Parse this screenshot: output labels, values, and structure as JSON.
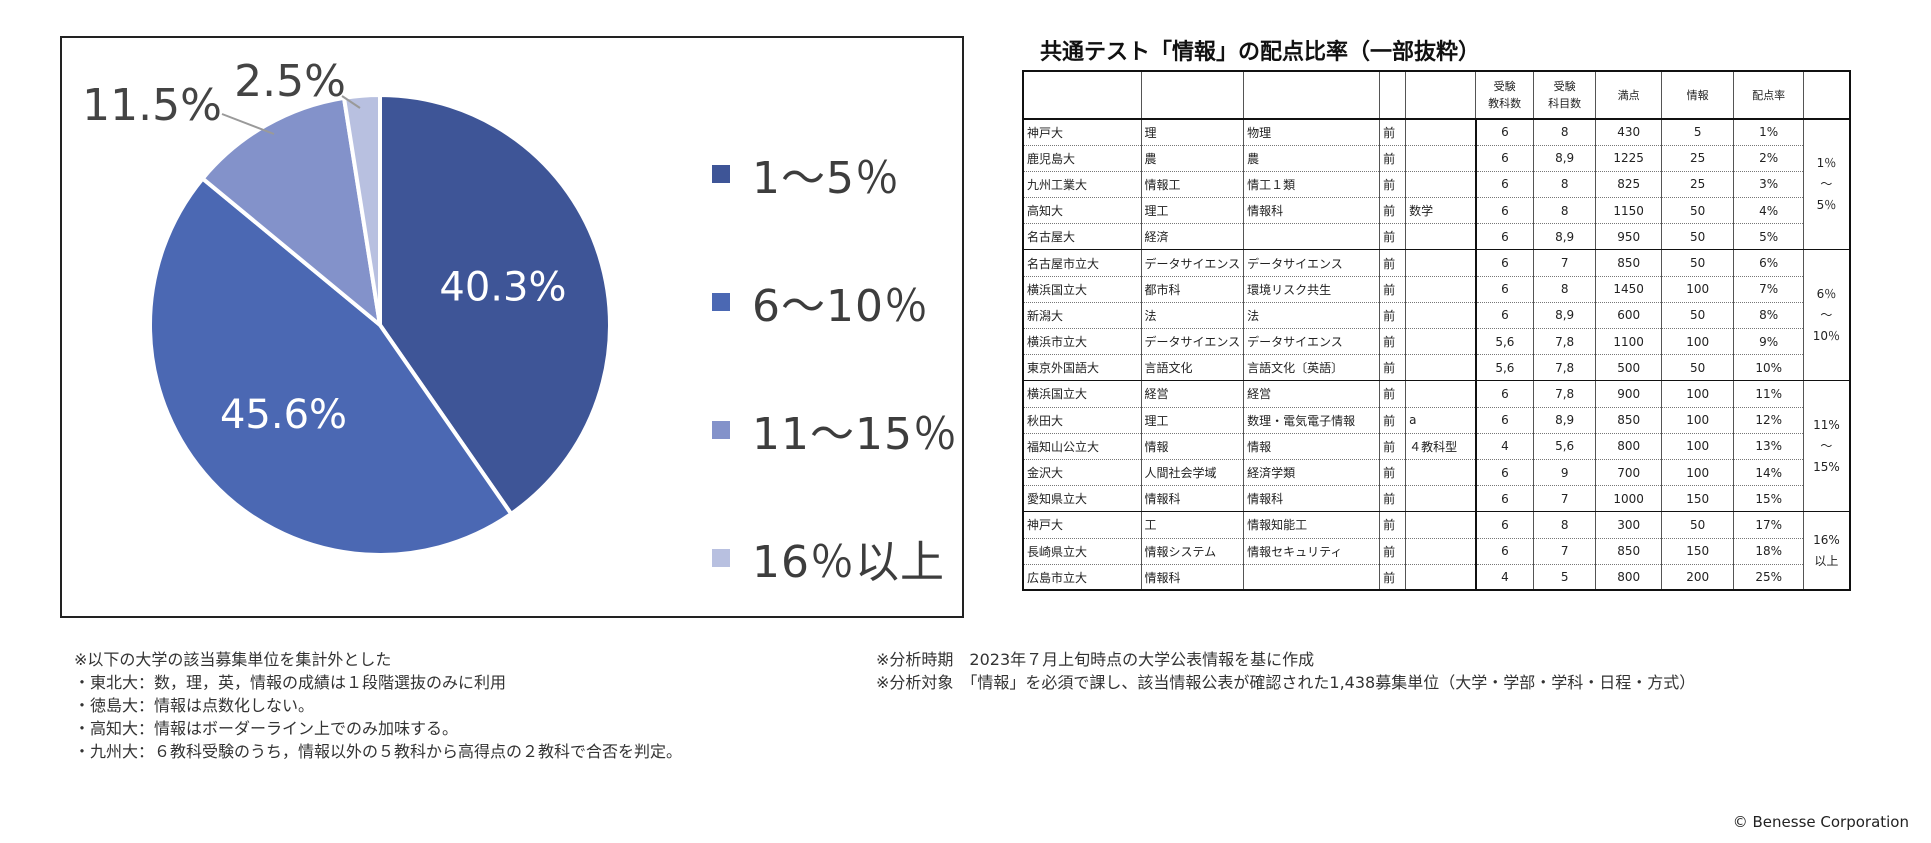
{
  "chart_data": {
    "type": "pie",
    "slices": [
      {
        "label": "1～5％",
        "value": 40.3,
        "value_label": "40.3%",
        "color": "#3e5597"
      },
      {
        "label": "6～10％",
        "value": 45.6,
        "value_label": "45.6%",
        "color": "#4b68b3"
      },
      {
        "label": "11～15％",
        "value": 11.5,
        "value_label": "11.5%",
        "color": "#8392ca"
      },
      {
        "label": "16％以上",
        "value": 2.5,
        "value_label": "2.5%",
        "color": "#b8c0e0"
      }
    ],
    "legend": "right"
  },
  "table": {
    "title": "共通テスト「情報」の配点比率（一部抜粋）",
    "headers": [
      "",
      "",
      "",
      "",
      "",
      "受験\n教科数",
      "受験\n科目数",
      "満点",
      "情報",
      "配点率"
    ],
    "groups": [
      {
        "range_label": "1％\n～\n5％",
        "rows": [
          [
            "神戸大",
            "理",
            "物理",
            "前",
            "",
            "6",
            "8",
            "430",
            "5",
            "1%"
          ],
          [
            "鹿児島大",
            "農",
            "農",
            "前",
            "",
            "6",
            "8,9",
            "1225",
            "25",
            "2%"
          ],
          [
            "九州工業大",
            "情報工",
            "情工１類",
            "前",
            "",
            "6",
            "8",
            "825",
            "25",
            "3%"
          ],
          [
            "高知大",
            "理工",
            "情報科",
            "前",
            "数学",
            "6",
            "8",
            "1150",
            "50",
            "4%"
          ],
          [
            "名古屋大",
            "経済",
            "",
            "前",
            "",
            "6",
            "8,9",
            "950",
            "50",
            "5%"
          ]
        ]
      },
      {
        "range_label": "6％\n～\n10％",
        "rows": [
          [
            "名古屋市立大",
            "データサイエンス",
            "データサイエンス",
            "前",
            "",
            "6",
            "7",
            "850",
            "50",
            "6%"
          ],
          [
            "横浜国立大",
            "都市科",
            "環境リスク共生",
            "前",
            "",
            "6",
            "8",
            "1450",
            "100",
            "7%"
          ],
          [
            "新潟大",
            "法",
            "法",
            "前",
            "",
            "6",
            "8,9",
            "600",
            "50",
            "8%"
          ],
          [
            "横浜市立大",
            "データサイエンス",
            "データサイエンス",
            "前",
            "",
            "5,6",
            "7,8",
            "1100",
            "100",
            "9%"
          ],
          [
            "東京外国語大",
            "言語文化",
            "言語文化〔英語〕",
            "前",
            "",
            "5,6",
            "7,8",
            "500",
            "50",
            "10%"
          ]
        ]
      },
      {
        "range_label": "11%\n～\n15%",
        "rows": [
          [
            "横浜国立大",
            "経営",
            "経営",
            "前",
            "",
            "6",
            "7,8",
            "900",
            "100",
            "11%"
          ],
          [
            "秋田大",
            "理工",
            "数理・電気電子情報",
            "前",
            "a",
            "6",
            "8,9",
            "850",
            "100",
            "12%"
          ],
          [
            "福知山公立大",
            "情報",
            "情報",
            "前",
            "４教科型",
            "4",
            "5,6",
            "800",
            "100",
            "13%"
          ],
          [
            "金沢大",
            "人間社会学域",
            "経済学類",
            "前",
            "",
            "6",
            "9",
            "700",
            "100",
            "14%"
          ],
          [
            "愛知県立大",
            "情報科",
            "情報科",
            "前",
            "",
            "6",
            "7",
            "1000",
            "150",
            "15%"
          ]
        ]
      },
      {
        "range_label": "16%\n以上",
        "rows": [
          [
            "神戸大",
            "工",
            "情報知能工",
            "前",
            "",
            "6",
            "8",
            "300",
            "50",
            "17%"
          ],
          [
            "長崎県立大",
            "情報システム",
            "情報セキュリティ",
            "前",
            "",
            "6",
            "7",
            "850",
            "150",
            "18%"
          ],
          [
            "広島市立大",
            "情報科",
            "",
            "前",
            "",
            "4",
            "5",
            "800",
            "200",
            "25%"
          ]
        ]
      }
    ]
  },
  "notes_left": [
    "※以下の大学の該当募集単位を集計外とした",
    "・東北大：数，理，英，情報の成績は１段階選抜のみに利用",
    "・徳島大：情報は点数化しない。",
    "・高知大：情報はボーダーライン上でのみ加味する。",
    "・九州大：６教科受験のうち，情報以外の５教科から高得点の２教科で合否を判定。"
  ],
  "notes_right": [
    "※分析時期　2023年７月上旬時点の大学公表情報を基に作成",
    "※分析対象　「情報」を必須で課し、該当情報公表が確認された1,438募集単位（大学・学部・学科・日程・方式）"
  ],
  "copyright": "© Benesse Corporation"
}
